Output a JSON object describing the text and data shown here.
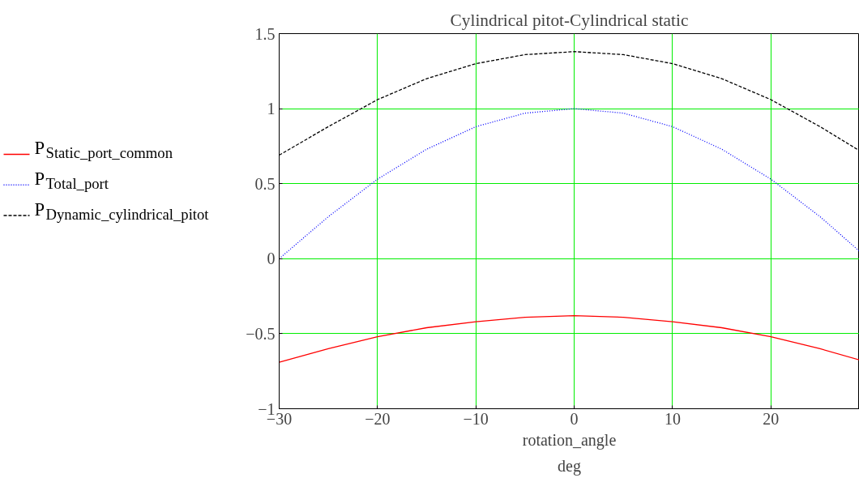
{
  "chart_data": {
    "type": "line",
    "title": "Cylindrical pitot-Cylindrical static",
    "xlabel": "rotation_angle\ndeg",
    "x": [
      -30,
      -25,
      -20,
      -15,
      -10,
      -5,
      0,
      5,
      10,
      15,
      20,
      25,
      29
    ],
    "series": [
      {
        "name": "P$_{Static_port_common}$",
        "color": "#ff0000",
        "line_style": "solid",
        "values": [
          -0.69,
          -0.6,
          -0.52,
          -0.46,
          -0.42,
          -0.39,
          -0.38,
          -0.39,
          -0.42,
          -0.46,
          -0.52,
          -0.6,
          -0.675
        ]
      },
      {
        "name": "P$_{Total_port}$",
        "color": "#0000ff",
        "line_style": "dotted",
        "values": [
          0,
          0.28,
          0.53,
          0.73,
          0.88,
          0.97,
          1.0,
          0.97,
          0.88,
          0.73,
          0.53,
          0.28,
          0.05
        ]
      },
      {
        "name": "P$_{Dynamic_cylindrical_pitot}$",
        "color": "#000000",
        "line_style": "dashed",
        "values": [
          0.69,
          0.88,
          1.06,
          1.2,
          1.3,
          1.36,
          1.38,
          1.36,
          1.3,
          1.2,
          1.06,
          0.88,
          0.72
        ]
      }
    ],
    "xlim": [
      -30,
      29
    ],
    "ylim": [
      -1,
      1.5
    ],
    "xticks": [
      -30,
      -20,
      -10,
      0,
      10,
      20
    ],
    "yticks": [
      -1,
      -0.5,
      0,
      0.5,
      1,
      1.5
    ],
    "grid": true,
    "legend": "left"
  }
}
